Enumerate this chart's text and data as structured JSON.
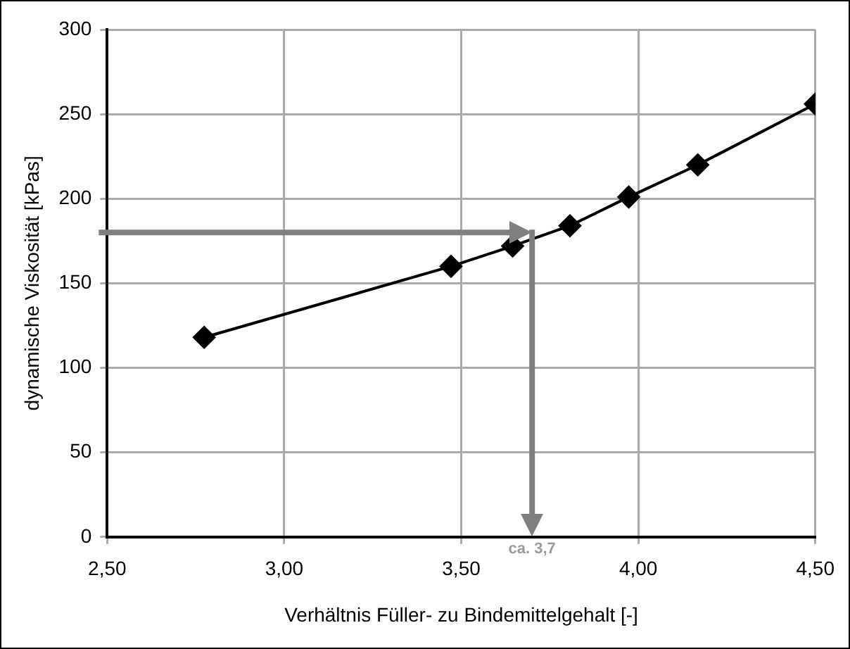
{
  "chart_data": {
    "type": "line",
    "xlabel": "Verhältnis Füller- zu Bindemittelgehalt [-]",
    "ylabel": "dynamische Viskosität [kPas]",
    "x": [
      2.774,
      3.471,
      3.645,
      3.807,
      3.973,
      4.168,
      4.5
    ],
    "series": [
      {
        "color": "#000000",
        "values": [
          118,
          160,
          172,
          184,
          201,
          220,
          256
        ]
      }
    ],
    "xlim": [
      2.5,
      4.5
    ],
    "xticks": [
      {
        "value": 2.5,
        "label": "2,50"
      },
      {
        "value": 3,
        "label": "3,00"
      },
      {
        "value": 3.5,
        "label": "3,50"
      },
      {
        "value": 4,
        "label": "4,00"
      },
      {
        "value": 4.5,
        "label": "4,50"
      }
    ],
    "ylim": [
      0,
      300
    ],
    "yticks": [
      0,
      50,
      100,
      150,
      200,
      250,
      300
    ],
    "ref_lines": [
      {
        "axis": "y",
        "value": 180,
        "color": "#7f7f7f"
      },
      {
        "axis": "x",
        "value": 3.7,
        "label": "ca. 3,7",
        "color": "#7f7f7f"
      }
    ],
    "grid": true,
    "legend": false,
    "marker": "diamond",
    "line_style": "solid"
  }
}
